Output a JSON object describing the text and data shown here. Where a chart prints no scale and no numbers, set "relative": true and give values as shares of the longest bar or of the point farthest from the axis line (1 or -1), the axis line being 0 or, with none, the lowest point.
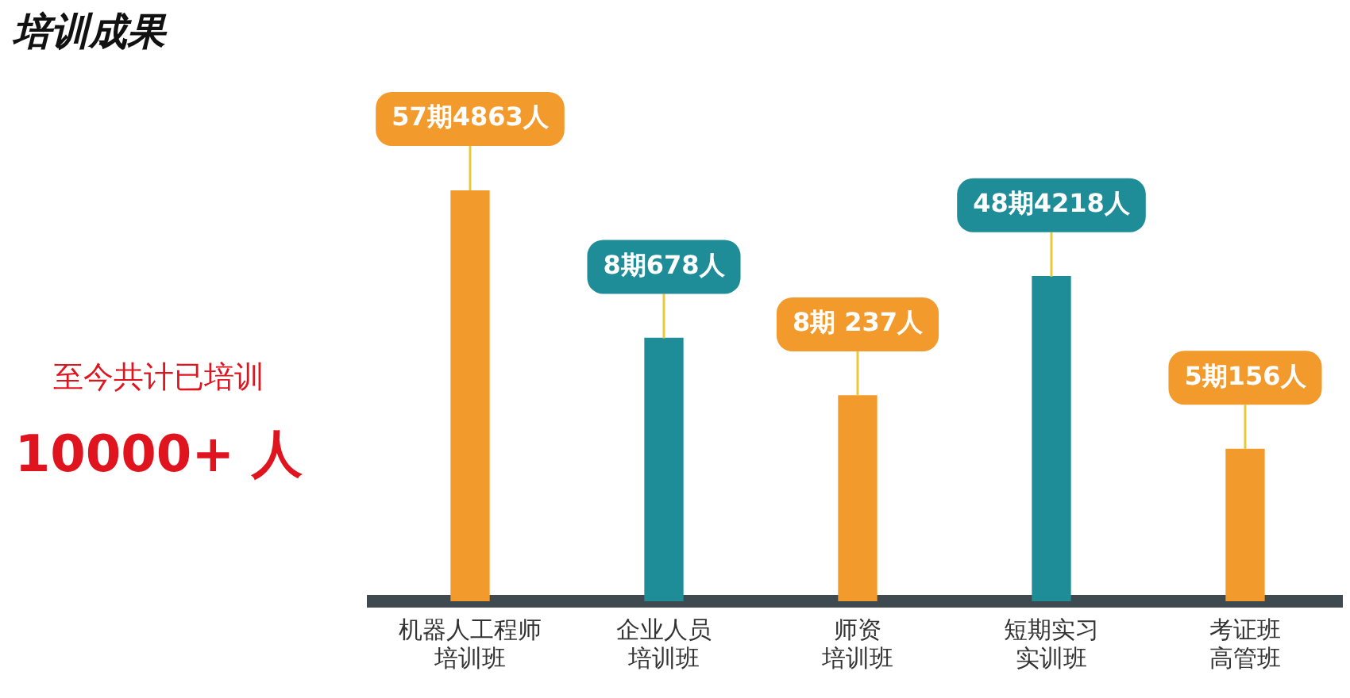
{
  "chart_data": {
    "type": "bar",
    "title": "培训成果",
    "categories": [
      "机器人工程师培训班",
      "企业人员培训班",
      "师资培训班",
      "短期实习实训班",
      "考证班高管班"
    ],
    "values": [
      1,
      0.64,
      0.5,
      0.79,
      0.37
    ],
    "colors": [
      "#f39a2c",
      "#1f8d98",
      "#f39a2c",
      "#1f8d98",
      "#f39a2c"
    ],
    "relative": true,
    "grid": false,
    "legend": false,
    "annotations": [
      "至今共计已培训",
      "10000+ 人",
      {
        "text": "57期4863人",
        "x": "机器人工程师培训班"
      },
      {
        "text": "8期678人",
        "x": "企业人员培训班"
      },
      {
        "text": "8期 237人",
        "x": "师资培训班"
      },
      {
        "text": "48期4218人",
        "x": "短期实习实训班"
      },
      {
        "text": "5期156人",
        "x": "考证班高管班"
      }
    ]
  }
}
